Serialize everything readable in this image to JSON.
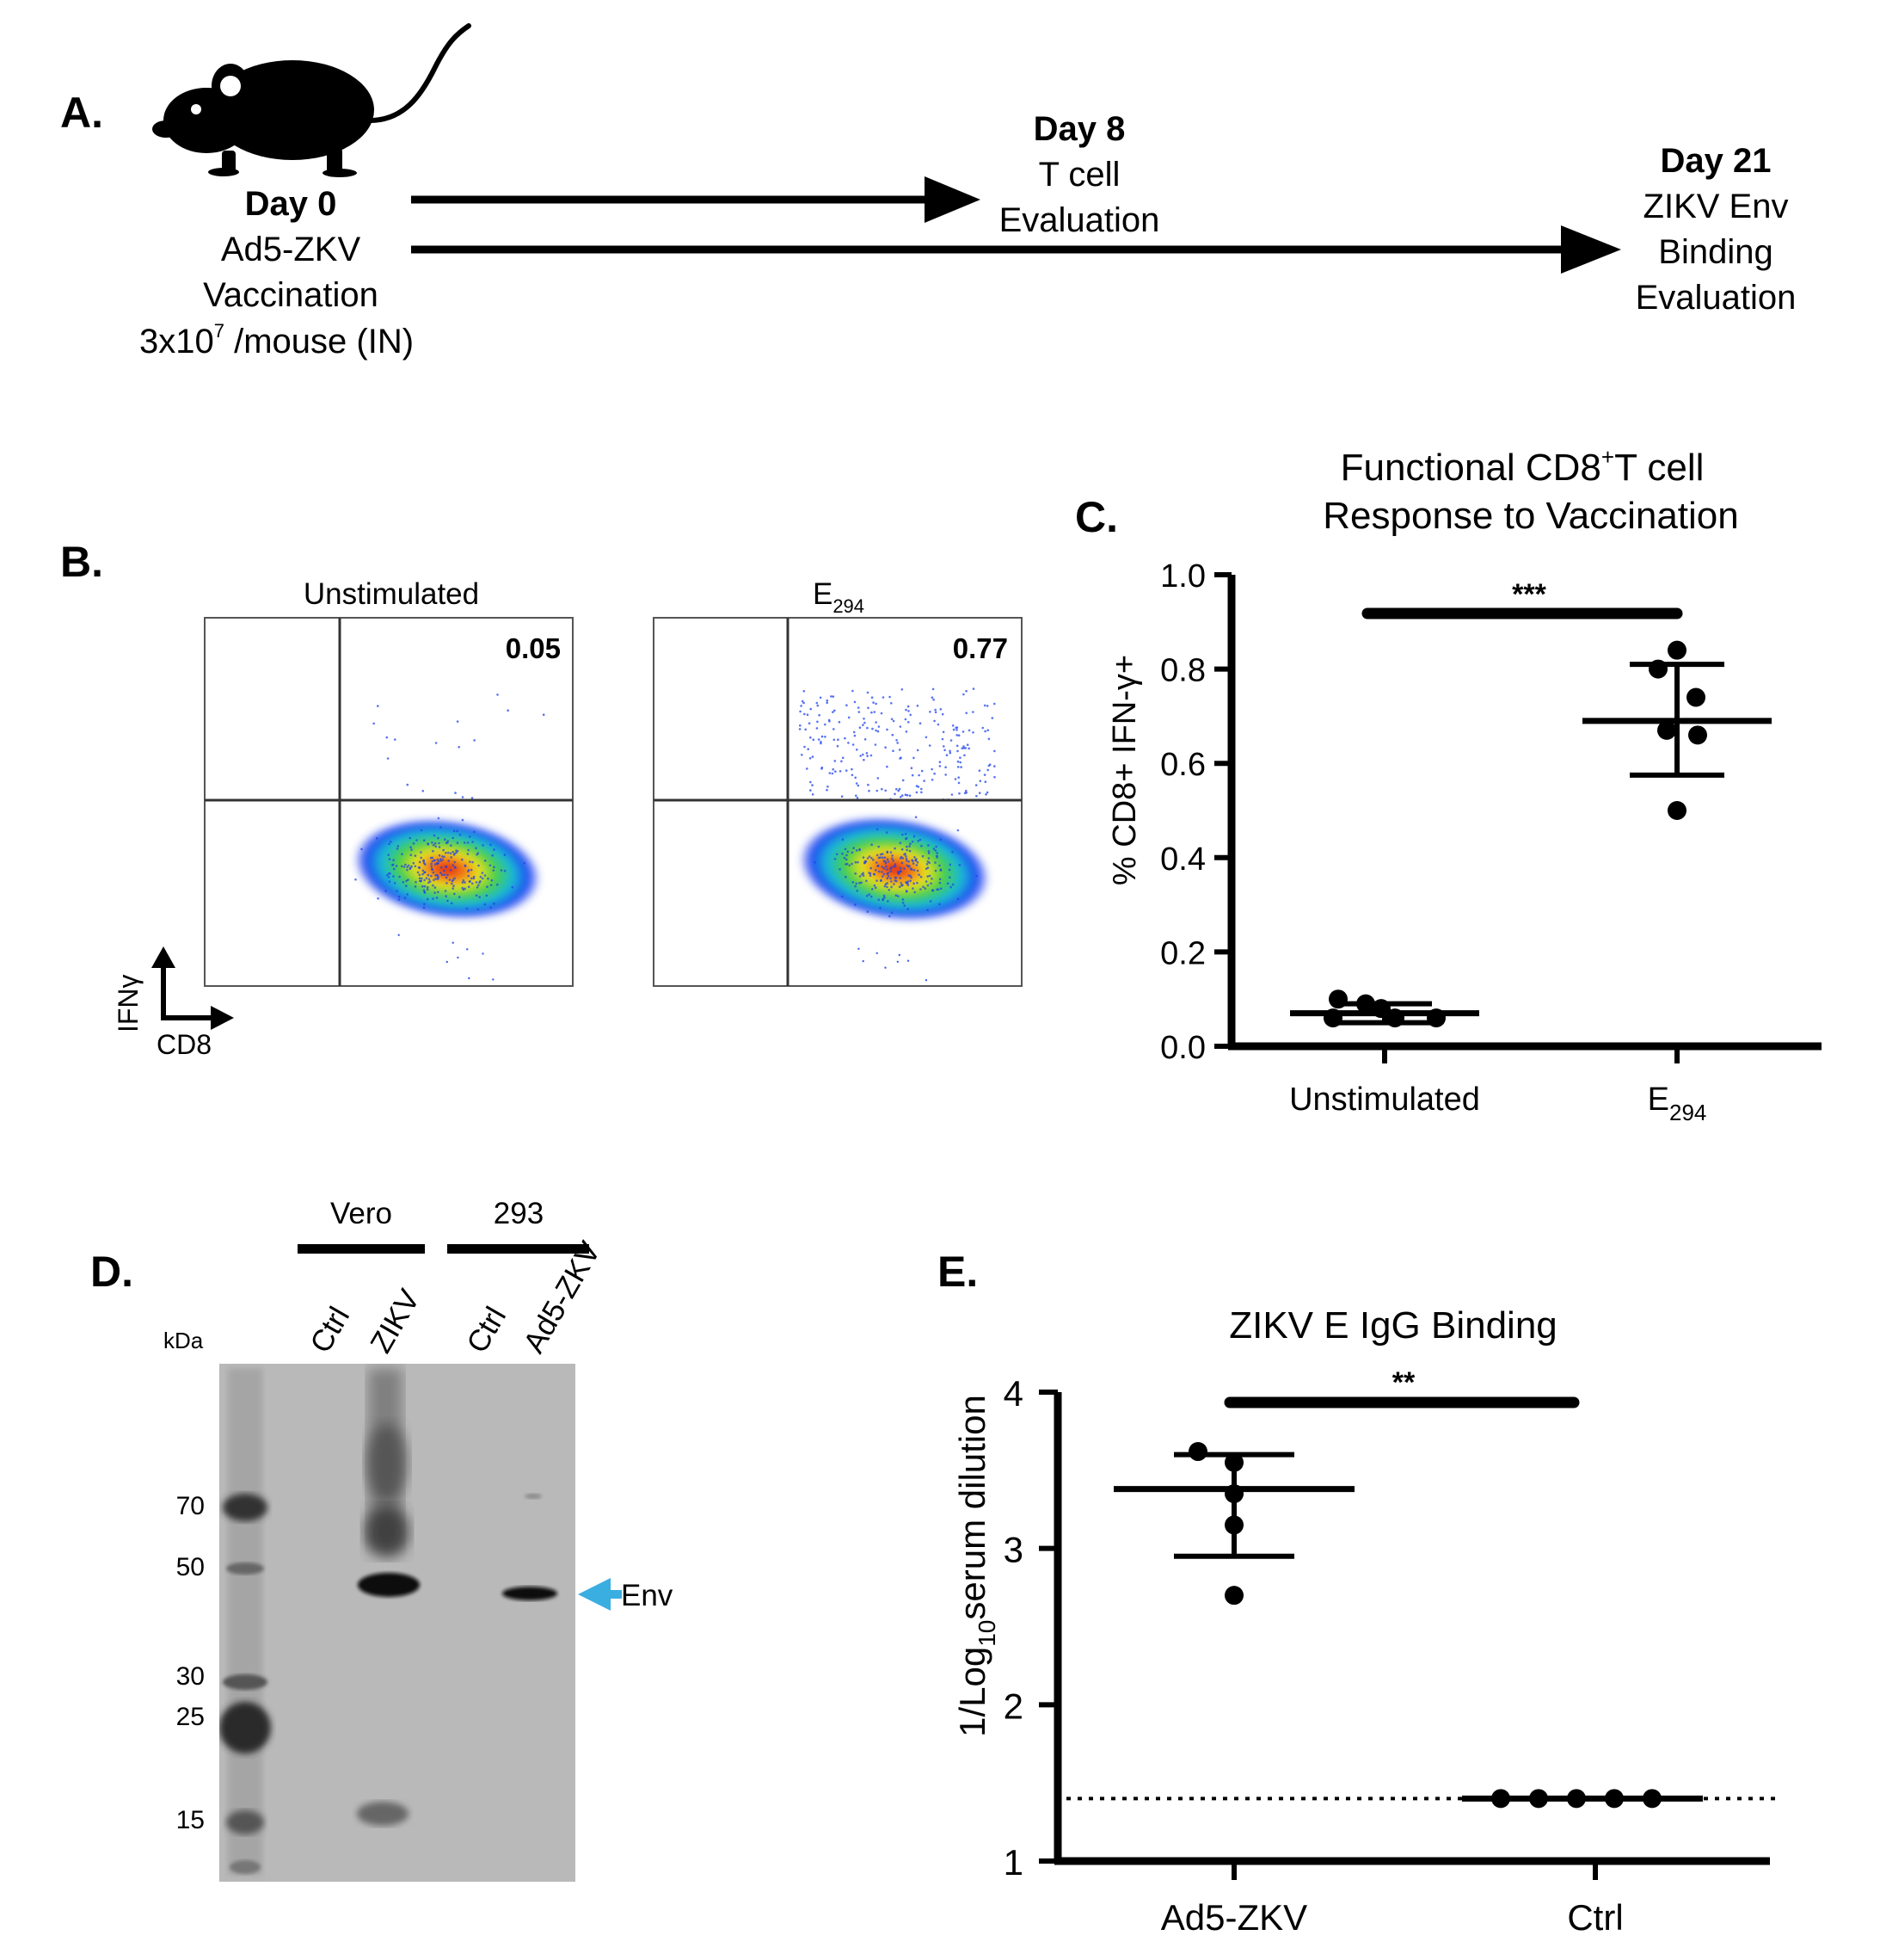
{
  "panels": {
    "a": "A.",
    "b": "B.",
    "c": "C.",
    "d": "D.",
    "e": "E."
  },
  "timeline": {
    "day0_title": "Day 0",
    "day0_lines": [
      "Ad5-ZKV",
      "Vaccination"
    ],
    "dose_prefix": "3x10",
    "dose_exp": "7",
    "dose_suffix": " /mouse (IN)",
    "day8_title": "Day 8",
    "day8_lines": [
      "T cell",
      "Evaluation"
    ],
    "day21_title": "Day 21",
    "day21_lines": [
      "ZIKV Env",
      "Binding",
      "Evaluation"
    ]
  },
  "flow": {
    "plots": [
      {
        "title": "Unstimulated",
        "title_sub": "",
        "value": "0.05",
        "responder_fraction": 0.05
      },
      {
        "title": "E",
        "title_sub": "294",
        "value": "0.77",
        "responder_fraction": 0.77
      }
    ],
    "ylabel": "IFNγ",
    "xlabel": "CD8"
  },
  "colors": {
    "ink": "#000000",
    "arrow": "#3aaee0",
    "blot_bg": "#b9b9b9"
  },
  "chart_data": [
    {
      "id": "C",
      "type": "scatter",
      "title_line1": "Functional CD8",
      "title_sup": "+",
      "title_line1_end": "T cell",
      "title_line2": "Response to Vaccination",
      "ylabel": "% CD8+ IFN-γ+",
      "ylim": [
        0,
        1.0
      ],
      "yticks": [
        "0.0",
        "0.2",
        "0.4",
        "0.6",
        "0.8",
        "1.0"
      ],
      "categories": [
        {
          "label": "Unstimulated",
          "sub": ""
        },
        {
          "label": "E",
          "sub": "294"
        }
      ],
      "series": [
        {
          "name": "Unstimulated",
          "values": [
            0.1,
            0.09,
            0.08,
            0.06,
            0.06,
            0.06
          ],
          "mean": 0.07,
          "sd_low": 0.05,
          "sd_high": 0.09
        },
        {
          "name": "E294",
          "values": [
            0.84,
            0.8,
            0.74,
            0.67,
            0.66,
            0.5
          ],
          "mean": 0.69,
          "sd_low": 0.575,
          "sd_high": 0.81
        }
      ],
      "significance": "***"
    },
    {
      "id": "E",
      "type": "scatter",
      "title": "ZIKV E IgG Binding",
      "ylabel_pre": "1/Log",
      "ylabel_sub": "10",
      "ylabel_post": "serum dilution",
      "ylim": [
        1,
        4
      ],
      "yticks": [
        "1",
        "2",
        "3",
        "4"
      ],
      "categories": [
        "Ad5-ZKV",
        "Ctrl"
      ],
      "series": [
        {
          "name": "Ad5-ZKV",
          "values": [
            3.62,
            3.55,
            3.35,
            3.15,
            2.7
          ],
          "mean": 3.38,
          "sd_low": 2.95,
          "sd_high": 3.6
        },
        {
          "name": "Ctrl",
          "values": [
            1.4,
            1.4,
            1.4,
            1.4,
            1.4
          ],
          "mean": 1.4,
          "sd_low": 1.4,
          "sd_high": 1.4
        }
      ],
      "detection_limit": 1.4,
      "significance": "**"
    }
  ],
  "blot": {
    "groups": [
      "Vero",
      "293"
    ],
    "lanes": [
      "Ctrl",
      "ZIKV",
      "Ctrl",
      "Ad5-ZKV"
    ],
    "unit": "kDa",
    "markers": [
      "70",
      "50",
      "30",
      "25",
      "15"
    ],
    "band_label": "Env"
  }
}
